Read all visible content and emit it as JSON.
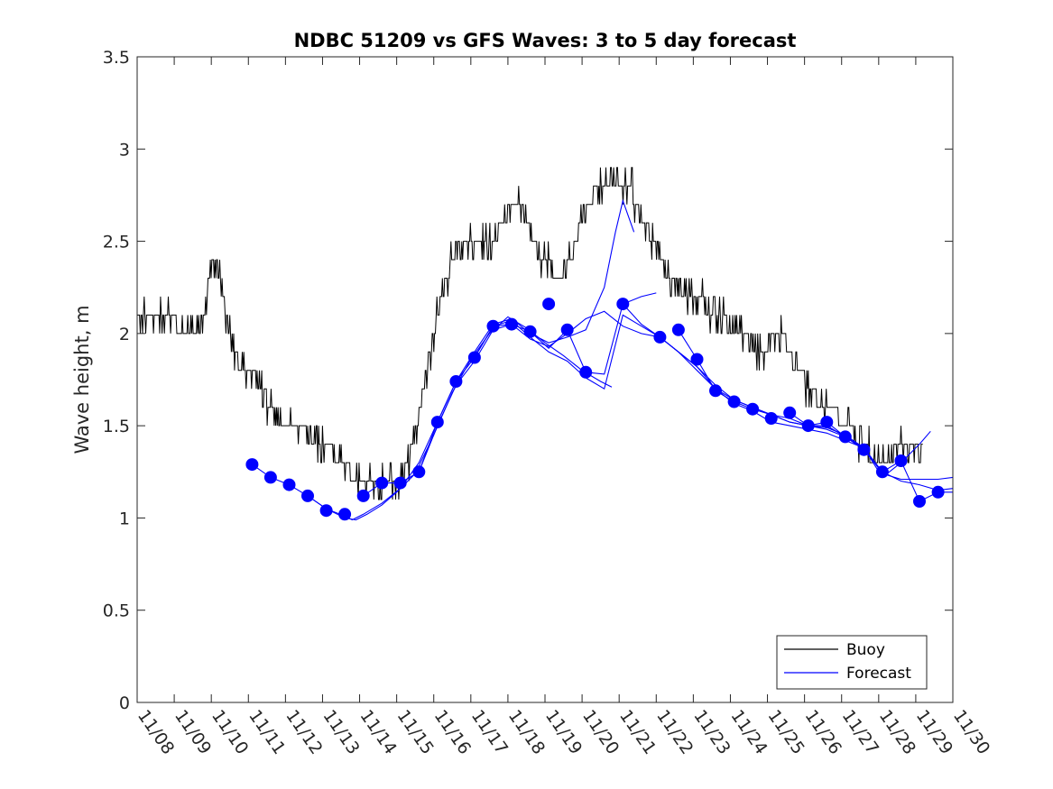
{
  "chart_data": {
    "type": "line",
    "title": "NDBC 51209 vs GFS Waves: 3 to 5 day forecast",
    "xlabel": "",
    "ylabel": "Wave height, m",
    "xlim": [
      0,
      22
    ],
    "ylim": [
      0,
      3.5
    ],
    "x_unit": "days since 11/08",
    "yticks": [
      0,
      0.5,
      1,
      1.5,
      2,
      2.5,
      3,
      3.5
    ],
    "ytick_labels": [
      "0",
      "0.5",
      "1",
      "1.5",
      "2",
      "2.5",
      "3",
      "3.5"
    ],
    "xticks": [
      0,
      1,
      2,
      3,
      4,
      5,
      6,
      7,
      8,
      9,
      10,
      11,
      12,
      13,
      14,
      15,
      16,
      17,
      18,
      19,
      20,
      21,
      22
    ],
    "xtick_labels": [
      "11/08",
      "11/09",
      "11/10",
      "11/11",
      "11/12",
      "11/13",
      "11/14",
      "11/15",
      "11/16",
      "11/17",
      "11/18",
      "11/19",
      "11/20",
      "11/21",
      "11/22",
      "11/23",
      "11/24",
      "11/25",
      "11/26",
      "11/27",
      "11/28",
      "11/29",
      "11/30"
    ],
    "legend": {
      "location": "bottom-right",
      "entries": [
        {
          "label": "Buoy",
          "color": "#000000"
        },
        {
          "label": "Forecast",
          "color": "#0000ff"
        }
      ]
    },
    "series": [
      {
        "name": "Buoy",
        "color": "#000000",
        "jitter": 0.1,
        "x": [
          0,
          0.3,
          0.6,
          0.9,
          1.2,
          1.5,
          1.8,
          2.0,
          2.2,
          2.5,
          2.8,
          3.0,
          3.3,
          3.6,
          4.0,
          4.3,
          4.6,
          5.0,
          5.3,
          5.6,
          6.0,
          6.3,
          6.6,
          7.0,
          7.3,
          7.6,
          7.9,
          8.2,
          8.5,
          8.8,
          9.2,
          9.6,
          10.0,
          10.3,
          10.6,
          10.9,
          11.2,
          11.5,
          11.8,
          12.0,
          12.3,
          12.6,
          12.9,
          13.2,
          13.5,
          13.8,
          14.1,
          14.4,
          14.7,
          15.0,
          15.3,
          15.6,
          15.9,
          16.2,
          16.5,
          16.8,
          17.1,
          17.4,
          17.7,
          18.0,
          18.3,
          18.6,
          18.9,
          19.2,
          19.5,
          19.8,
          20.1,
          20.4,
          20.7,
          21.0,
          21.2
        ],
        "values": [
          2.05,
          2.1,
          2.05,
          2.1,
          2.0,
          2.0,
          2.1,
          2.4,
          2.3,
          2.0,
          1.8,
          1.75,
          1.75,
          1.6,
          1.5,
          1.45,
          1.45,
          1.4,
          1.35,
          1.28,
          1.2,
          1.2,
          1.18,
          1.2,
          1.3,
          1.55,
          1.9,
          2.2,
          2.4,
          2.5,
          2.45,
          2.5,
          2.65,
          2.7,
          2.55,
          2.4,
          2.35,
          2.3,
          2.45,
          2.65,
          2.75,
          2.8,
          2.85,
          2.8,
          2.7,
          2.55,
          2.4,
          2.3,
          2.25,
          2.2,
          2.15,
          2.1,
          2.05,
          2.0,
          1.95,
          1.9,
          1.95,
          2.0,
          1.85,
          1.75,
          1.65,
          1.6,
          1.55,
          1.5,
          1.4,
          1.35,
          1.3,
          1.35,
          1.4,
          1.35,
          1.35
        ]
      },
      {
        "name": "Forecast",
        "color": "#0000ff",
        "marker": "o",
        "markers_x": [
          3.1,
          3.6,
          4.1,
          4.6,
          5.1,
          5.6,
          6.1,
          6.6,
          7.1,
          7.6,
          8.1,
          8.6,
          9.1,
          9.6,
          10.1,
          10.6,
          11.1,
          11.6,
          12.1,
          13.1,
          14.1,
          14.6,
          15.1,
          15.6,
          16.1,
          16.6,
          17.1,
          17.6,
          18.1,
          18.6,
          19.1,
          19.6,
          20.1,
          20.6,
          21.1,
          21.6
        ],
        "markers_y": [
          1.29,
          1.22,
          1.18,
          1.12,
          1.04,
          1.02,
          1.12,
          1.19,
          1.19,
          1.25,
          1.52,
          1.74,
          1.87,
          2.04,
          2.05,
          2.01,
          2.16,
          2.02,
          1.79,
          2.16,
          1.98,
          2.02,
          1.86,
          1.69,
          1.63,
          1.59,
          1.54,
          1.57,
          1.5,
          1.52,
          1.44,
          1.37,
          1.25,
          1.31,
          1.09,
          1.14
        ],
        "tracks": [
          {
            "x": [
              3.1,
              3.6,
              4.1,
              4.6,
              5.1,
              5.6,
              5.9,
              6.2,
              6.6,
              7.0,
              7.5,
              8.0,
              8.5,
              9.0,
              9.5,
              10.0,
              10.5,
              11.0,
              11.5,
              12.0,
              12.5,
              12.8
            ],
            "values": [
              1.29,
              1.22,
              1.18,
              1.12,
              1.05,
              1.0,
              0.99,
              1.02,
              1.07,
              1.14,
              1.24,
              1.45,
              1.68,
              1.86,
              2.0,
              2.09,
              2.03,
              1.95,
              1.88,
              1.8,
              1.74,
              1.71
            ]
          },
          {
            "x": [
              4.6,
              5.1,
              5.6,
              5.8,
              6.1,
              6.6,
              7.1,
              7.6,
              8.1,
              8.6,
              9.1,
              9.6,
              10.1,
              10.6,
              11.1,
              11.6,
              12.1,
              12.6,
              12.9,
              13.1,
              13.4
            ],
            "values": [
              1.12,
              1.05,
              1.01,
              0.99,
              1.02,
              1.08,
              1.16,
              1.3,
              1.52,
              1.74,
              1.9,
              2.05,
              2.08,
              2.0,
              1.95,
              1.98,
              2.02,
              2.25,
              2.55,
              2.72,
              2.55
            ]
          },
          {
            "x": [
              6.1,
              6.6,
              7.1,
              7.6,
              8.1,
              8.6,
              9.1,
              9.6,
              10.1,
              10.6,
              11.1,
              11.6,
              12.1,
              12.6,
              13.1,
              13.6,
              14.0
            ],
            "values": [
              1.12,
              1.19,
              1.19,
              1.25,
              1.52,
              1.74,
              1.87,
              2.04,
              2.05,
              2.01,
              1.92,
              2.02,
              1.79,
              1.78,
              2.16,
              2.2,
              2.22
            ]
          },
          {
            "x": [
              7.1,
              7.6,
              8.1,
              8.6,
              9.1,
              9.6,
              10.1,
              10.6,
              11.1,
              11.6,
              12.1,
              12.6,
              13.1,
              13.6,
              14.1,
              14.6,
              15.1,
              15.6,
              16.1,
              16.6,
              17.1,
              17.6,
              18.1,
              18.6,
              19.1
            ],
            "values": [
              1.19,
              1.25,
              1.5,
              1.72,
              1.85,
              2.02,
              2.05,
              1.97,
              1.93,
              2.0,
              2.08,
              2.12,
              2.04,
              2.0,
              1.98,
              1.9,
              1.82,
              1.72,
              1.64,
              1.6,
              1.56,
              1.52,
              1.5,
              1.48,
              1.44
            ]
          },
          {
            "x": [
              9.1,
              9.6,
              10.1,
              10.6,
              11.1,
              11.6,
              12.1,
              12.6,
              13.1,
              13.6,
              14.1,
              14.6,
              15.1,
              15.6,
              16.1,
              16.6,
              17.1,
              17.6,
              18.1,
              18.6,
              19.1,
              19.6,
              20.1,
              20.6,
              21.1,
              21.6,
              22.0
            ],
            "values": [
              1.87,
              2.04,
              2.07,
              1.98,
              1.9,
              1.85,
              1.76,
              1.7,
              2.1,
              2.04,
              1.98,
              1.9,
              1.8,
              1.7,
              1.64,
              1.6,
              1.56,
              1.54,
              1.5,
              1.5,
              1.44,
              1.38,
              1.25,
              1.2,
              1.18,
              1.15,
              1.16
            ]
          },
          {
            "x": [
              13.1,
              13.6,
              14.1,
              14.6,
              15.1,
              15.6,
              16.1,
              16.6,
              17.1,
              17.6,
              18.1,
              18.6,
              19.1,
              19.6,
              20.1,
              20.6,
              21.1,
              21.6,
              22.0
            ],
            "values": [
              2.16,
              2.05,
              1.98,
              1.9,
              1.82,
              1.7,
              1.62,
              1.58,
              1.52,
              1.5,
              1.48,
              1.46,
              1.42,
              1.38,
              1.24,
              1.21,
              1.21,
              1.21,
              1.22
            ]
          },
          {
            "x": [
              14.6,
              15.1,
              15.6,
              16.1,
              16.6,
              17.1,
              17.6,
              18.1,
              18.6,
              19.1,
              19.6,
              20.1,
              20.6,
              21.1,
              21.4
            ],
            "values": [
              2.02,
              1.86,
              1.69,
              1.63,
              1.59,
              1.56,
              1.52,
              1.5,
              1.49,
              1.45,
              1.38,
              1.22,
              1.3,
              1.4,
              1.47
            ]
          },
          {
            "x": [
              17.6,
              18.1,
              18.6,
              19.1,
              19.6,
              20.1,
              20.6,
              21.1,
              21.6,
              22.0
            ],
            "values": [
              1.57,
              1.5,
              1.52,
              1.44,
              1.37,
              1.25,
              1.31,
              1.09,
              1.14,
              1.14
            ]
          }
        ]
      }
    ]
  }
}
